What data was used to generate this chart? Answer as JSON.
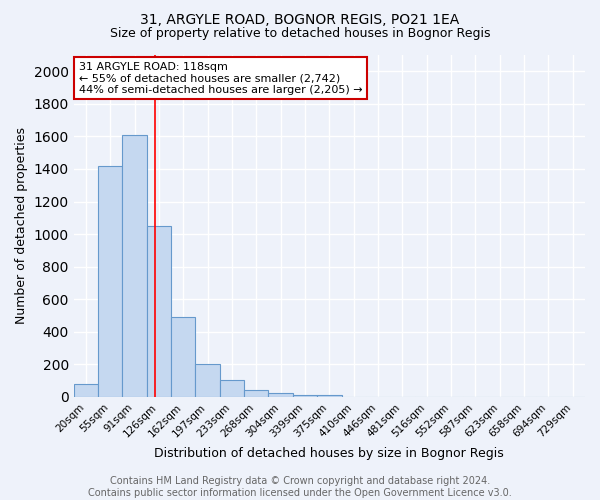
{
  "title": "31, ARGYLE ROAD, BOGNOR REGIS, PO21 1EA",
  "subtitle": "Size of property relative to detached houses in Bognor Regis",
  "xlabel": "Distribution of detached houses by size in Bognor Regis",
  "ylabel": "Number of detached properties",
  "categories": [
    "20sqm",
    "55sqm",
    "91sqm",
    "126sqm",
    "162sqm",
    "197sqm",
    "233sqm",
    "268sqm",
    "304sqm",
    "339sqm",
    "375sqm",
    "410sqm",
    "446sqm",
    "481sqm",
    "516sqm",
    "552sqm",
    "587sqm",
    "623sqm",
    "658sqm",
    "694sqm",
    "729sqm"
  ],
  "values": [
    80,
    1420,
    1610,
    1050,
    490,
    205,
    105,
    45,
    25,
    15,
    10,
    0,
    0,
    0,
    0,
    0,
    0,
    0,
    0,
    0,
    0
  ],
  "bar_color": "#c5d8f0",
  "bar_edge_color": "#6699cc",
  "red_line_x": 2.85,
  "annotation_text": "31 ARGYLE ROAD: 118sqm\n← 55% of detached houses are smaller (2,742)\n44% of semi-detached houses are larger (2,205) →",
  "annotation_box_color": "#ffffff",
  "annotation_box_edge": "#cc0000",
  "ylim": [
    0,
    2100
  ],
  "footer": "Contains HM Land Registry data © Crown copyright and database right 2024.\nContains public sector information licensed under the Open Government Licence v3.0.",
  "background_color": "#eef2fa",
  "grid_color": "#ffffff",
  "title_fontsize": 10,
  "subtitle_fontsize": 9,
  "axis_label_fontsize": 9,
  "tick_fontsize": 7.5,
  "footer_fontsize": 7
}
